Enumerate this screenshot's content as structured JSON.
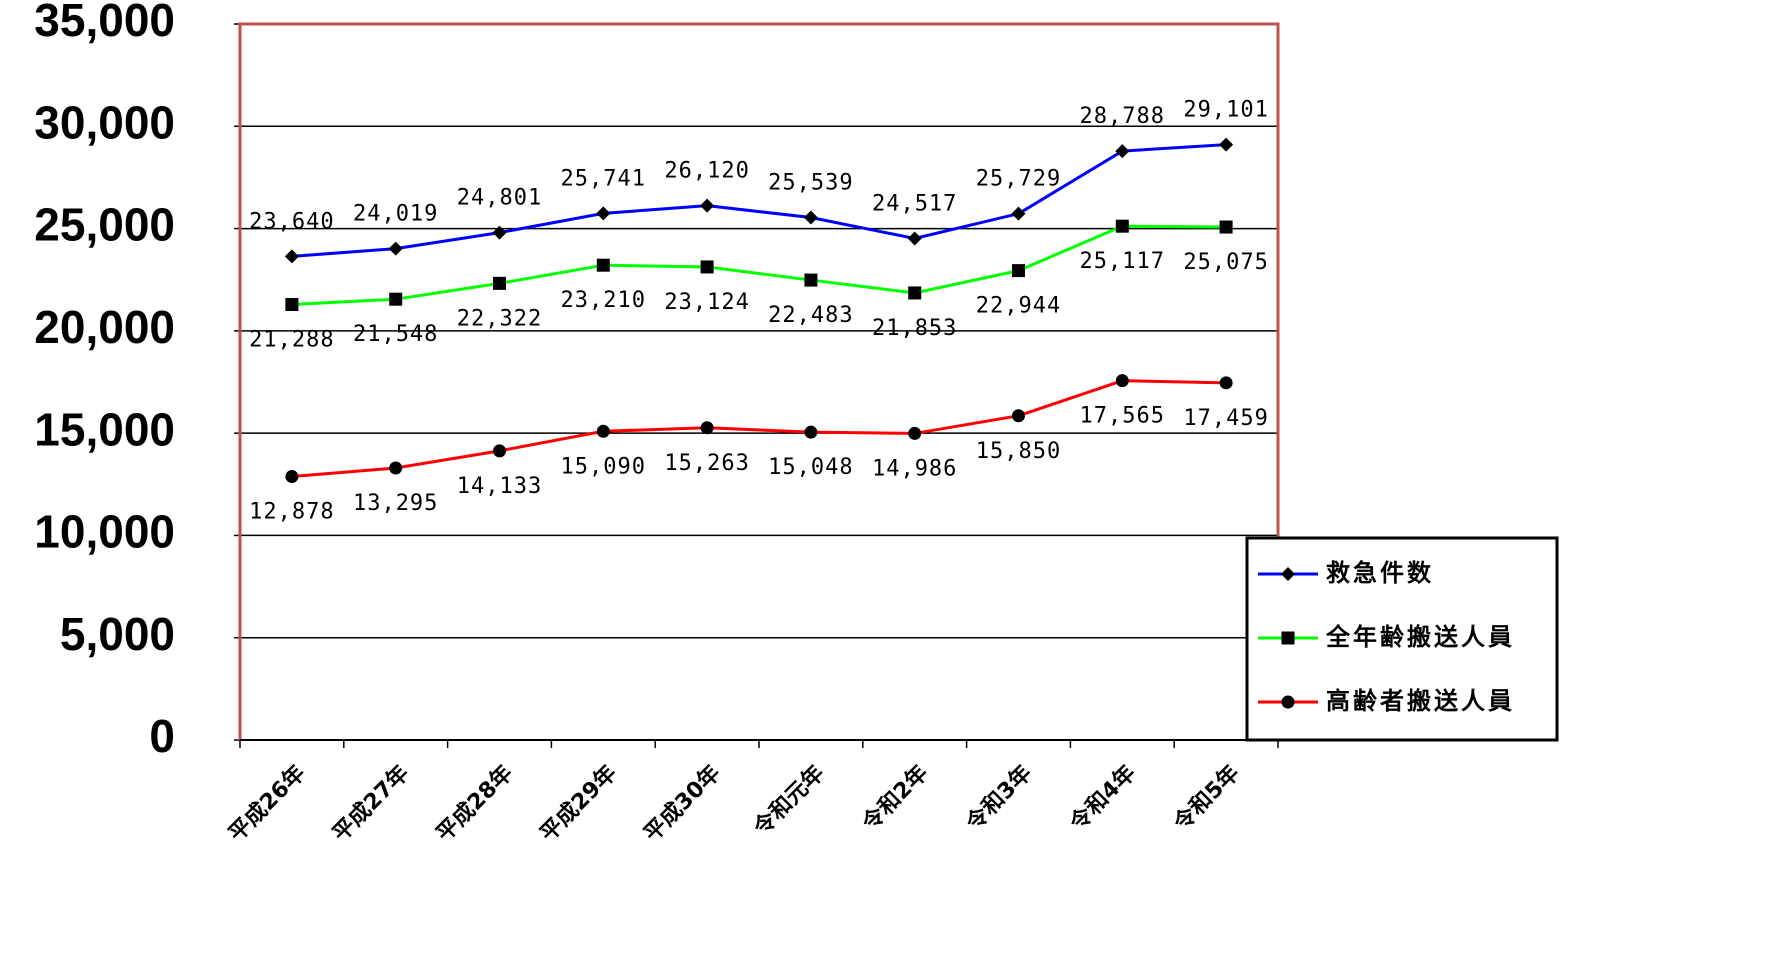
{
  "chart_data": {
    "type": "line",
    "categories": [
      "平成26年",
      "平成27年",
      "平成28年",
      "平成29年",
      "平成30年",
      "令和元年",
      "令和2年",
      "令和3年",
      "令和4年",
      "令和5年"
    ],
    "series": [
      {
        "name": "救急件数",
        "color": "#0000ff",
        "marker": "diamond",
        "values": [
          23640,
          24019,
          24801,
          25741,
          26120,
          25539,
          24517,
          25729,
          28788,
          29101
        ],
        "value_labels": [
          "23,640",
          "24,019",
          "24,801",
          "25,741",
          "26,120",
          "25,539",
          "24,517",
          "25,729",
          "28,788",
          "29,101"
        ]
      },
      {
        "name": "全年齢搬送人員",
        "color": "#00ff00",
        "marker": "square",
        "values": [
          21288,
          21548,
          22322,
          23210,
          23124,
          22483,
          21853,
          22944,
          25117,
          25075
        ],
        "value_labels": [
          "21,288",
          "21,548",
          "22,322",
          "23,210",
          "23,124",
          "22,483",
          "21,853",
          "22,944",
          "25,117",
          "25,075"
        ]
      },
      {
        "name": "高齢者搬送人員",
        "color": "#ff0000",
        "marker": "circle",
        "values": [
          12878,
          13295,
          14133,
          15090,
          15263,
          15048,
          14986,
          15850,
          17565,
          17459
        ],
        "value_labels": [
          "12,878",
          "13,295",
          "14,133",
          "15,090",
          "15,263",
          "15,048",
          "14,986",
          "15,850",
          "17,565",
          "17,459"
        ]
      }
    ],
    "ylim": [
      0,
      35000
    ],
    "yticks": [
      0,
      {
        "value": 5000,
        "label": "5,000"
      },
      {
        "value": 10000,
        "label": "10,000"
      },
      {
        "value": 15000,
        "label": "15,000"
      },
      {
        "value": 20000,
        "label": "20,000"
      },
      {
        "value": 25000,
        "label": "25,000"
      },
      {
        "value": 30000,
        "label": "30,000"
      },
      {
        "value": 35000,
        "label": "35,000"
      }
    ],
    "grid": true,
    "legend": "lower right"
  }
}
